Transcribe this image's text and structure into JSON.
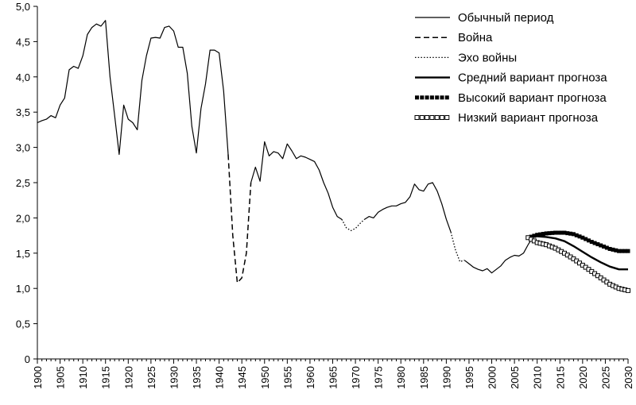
{
  "chart_data": {
    "type": "line",
    "title": "",
    "xlabel": "",
    "ylabel": "",
    "xlim": [
      1900,
      2030
    ],
    "ylim": [
      0,
      5
    ],
    "y_ticks": [
      "0",
      "0,5",
      "1,0",
      "1,5",
      "2,0",
      "2,5",
      "3,0",
      "3,5",
      "4,0",
      "4,5",
      "5,0"
    ],
    "x_ticks": [
      "1900",
      "1905",
      "1910",
      "1915",
      "1920",
      "1925",
      "1930",
      "1935",
      "1940",
      "1945",
      "1950",
      "1955",
      "1960",
      "1965",
      "1970",
      "1975",
      "1980",
      "1985",
      "1990",
      "1995",
      "2000",
      "2005",
      "2010",
      "2015",
      "2020",
      "2025",
      "2030"
    ],
    "grid": false,
    "legend_position": "top-right",
    "series": [
      {
        "name": "Обычный период",
        "style": "solid-thin",
        "color": "#000000",
        "points": [
          [
            1900,
            3.35
          ],
          [
            1901,
            3.38
          ],
          [
            1902,
            3.4
          ],
          [
            1903,
            3.45
          ],
          [
            1904,
            3.42
          ],
          [
            1905,
            3.6
          ],
          [
            1906,
            3.7
          ],
          [
            1907,
            4.1
          ],
          [
            1908,
            4.15
          ],
          [
            1909,
            4.12
          ],
          [
            1910,
            4.3
          ],
          [
            1911,
            4.6
          ],
          [
            1912,
            4.7
          ],
          [
            1913,
            4.75
          ],
          [
            1914,
            4.72
          ],
          [
            1915,
            4.8
          ],
          [
            1916,
            4.0
          ],
          [
            1917,
            3.45
          ],
          [
            1918,
            2.9
          ],
          [
            1919,
            3.6
          ],
          [
            1920,
            3.4
          ],
          [
            1921,
            3.35
          ],
          [
            1922,
            3.25
          ],
          [
            1923,
            3.95
          ],
          [
            1924,
            4.3
          ],
          [
            1925,
            4.55
          ],
          [
            1926,
            4.56
          ],
          [
            1927,
            4.55
          ],
          [
            1928,
            4.7
          ],
          [
            1929,
            4.72
          ],
          [
            1930,
            4.65
          ],
          [
            1931,
            4.42
          ],
          [
            1932,
            4.42
          ],
          [
            1933,
            4.05
          ],
          [
            1934,
            3.3
          ],
          [
            1935,
            2.92
          ],
          [
            1936,
            3.55
          ],
          [
            1937,
            3.9
          ],
          [
            1938,
            4.38
          ],
          [
            1939,
            4.38
          ],
          [
            1940,
            4.34
          ],
          [
            1941,
            3.8
          ],
          [
            1942,
            2.9
          ]
        ]
      },
      {
        "name": "Война",
        "style": "dashed",
        "color": "#000000",
        "points": [
          [
            1942,
            2.9
          ],
          [
            1943,
            1.75
          ],
          [
            1944,
            1.08
          ],
          [
            1945,
            1.15
          ],
          [
            1946,
            1.5
          ],
          [
            1947,
            2.5
          ]
        ]
      },
      {
        "name": "",
        "style": "solid-thin",
        "color": "#000000",
        "points": [
          [
            1947,
            2.5
          ],
          [
            1948,
            2.72
          ],
          [
            1949,
            2.52
          ],
          [
            1950,
            3.08
          ],
          [
            1951,
            2.88
          ],
          [
            1952,
            2.94
          ],
          [
            1953,
            2.92
          ],
          [
            1954,
            2.84
          ],
          [
            1955,
            3.05
          ],
          [
            1956,
            2.95
          ],
          [
            1957,
            2.84
          ],
          [
            1958,
            2.88
          ],
          [
            1959,
            2.86
          ],
          [
            1960,
            2.83
          ],
          [
            1961,
            2.8
          ],
          [
            1962,
            2.68
          ],
          [
            1963,
            2.5
          ],
          [
            1964,
            2.35
          ],
          [
            1965,
            2.15
          ],
          [
            1966,
            2.02
          ],
          [
            1967,
            1.98
          ]
        ]
      },
      {
        "name": "Эхо войны",
        "style": "dotted",
        "color": "#000000",
        "points": [
          [
            1967,
            1.98
          ],
          [
            1968,
            1.86
          ],
          [
            1969,
            1.82
          ],
          [
            1970,
            1.85
          ],
          [
            1971,
            1.92
          ],
          [
            1972,
            1.98
          ]
        ]
      },
      {
        "name": "",
        "style": "solid-thin",
        "color": "#000000",
        "points": [
          [
            1972,
            1.98
          ],
          [
            1973,
            2.02
          ],
          [
            1974,
            2.0
          ],
          [
            1975,
            2.08
          ],
          [
            1976,
            2.12
          ],
          [
            1977,
            2.15
          ],
          [
            1978,
            2.17
          ],
          [
            1979,
            2.17
          ],
          [
            1980,
            2.2
          ],
          [
            1981,
            2.22
          ],
          [
            1982,
            2.3
          ],
          [
            1983,
            2.48
          ],
          [
            1984,
            2.4
          ],
          [
            1985,
            2.38
          ],
          [
            1986,
            2.48
          ],
          [
            1987,
            2.5
          ],
          [
            1988,
            2.38
          ],
          [
            1989,
            2.2
          ],
          [
            1990,
            1.98
          ],
          [
            1991,
            1.8
          ]
        ]
      },
      {
        "name": "",
        "style": "dotted",
        "color": "#000000",
        "points": [
          [
            1991,
            1.8
          ],
          [
            1992,
            1.55
          ],
          [
            1993,
            1.38
          ],
          [
            1994,
            1.4
          ]
        ]
      },
      {
        "name": "",
        "style": "solid-thin",
        "color": "#000000",
        "points": [
          [
            1994,
            1.4
          ],
          [
            1995,
            1.35
          ],
          [
            1996,
            1.3
          ],
          [
            1997,
            1.27
          ],
          [
            1998,
            1.25
          ],
          [
            1999,
            1.28
          ],
          [
            2000,
            1.22
          ],
          [
            2001,
            1.27
          ],
          [
            2002,
            1.32
          ],
          [
            2003,
            1.4
          ],
          [
            2004,
            1.44
          ],
          [
            2005,
            1.47
          ],
          [
            2006,
            1.46
          ],
          [
            2007,
            1.5
          ],
          [
            2008,
            1.62
          ],
          [
            2009,
            1.72
          ]
        ]
      },
      {
        "name": "Средний вариант прогноза",
        "style": "solid-thick",
        "color": "#000000",
        "points": [
          [
            2008,
            1.72
          ],
          [
            2010,
            1.74
          ],
          [
            2012,
            1.73
          ],
          [
            2014,
            1.71
          ],
          [
            2016,
            1.67
          ],
          [
            2018,
            1.6
          ],
          [
            2020,
            1.52
          ],
          [
            2022,
            1.44
          ],
          [
            2024,
            1.37
          ],
          [
            2026,
            1.31
          ],
          [
            2028,
            1.27
          ],
          [
            2030,
            1.27
          ]
        ]
      },
      {
        "name": "Высокий вариант прогноза",
        "style": "square-dots",
        "color": "#000000",
        "points": [
          [
            2008,
            1.72
          ],
          [
            2010,
            1.76
          ],
          [
            2012,
            1.78
          ],
          [
            2014,
            1.79
          ],
          [
            2016,
            1.79
          ],
          [
            2018,
            1.77
          ],
          [
            2020,
            1.72
          ],
          [
            2022,
            1.66
          ],
          [
            2024,
            1.61
          ],
          [
            2026,
            1.56
          ],
          [
            2028,
            1.53
          ],
          [
            2030,
            1.53
          ]
        ]
      },
      {
        "name": "Низкий вариант прогноза",
        "style": "hollow-squares",
        "color": "#000000",
        "points": [
          [
            2008,
            1.72
          ],
          [
            2010,
            1.65
          ],
          [
            2012,
            1.62
          ],
          [
            2014,
            1.57
          ],
          [
            2016,
            1.5
          ],
          [
            2018,
            1.42
          ],
          [
            2020,
            1.33
          ],
          [
            2022,
            1.24
          ],
          [
            2024,
            1.15
          ],
          [
            2026,
            1.06
          ],
          [
            2028,
            1.0
          ],
          [
            2030,
            0.97
          ]
        ]
      }
    ]
  }
}
